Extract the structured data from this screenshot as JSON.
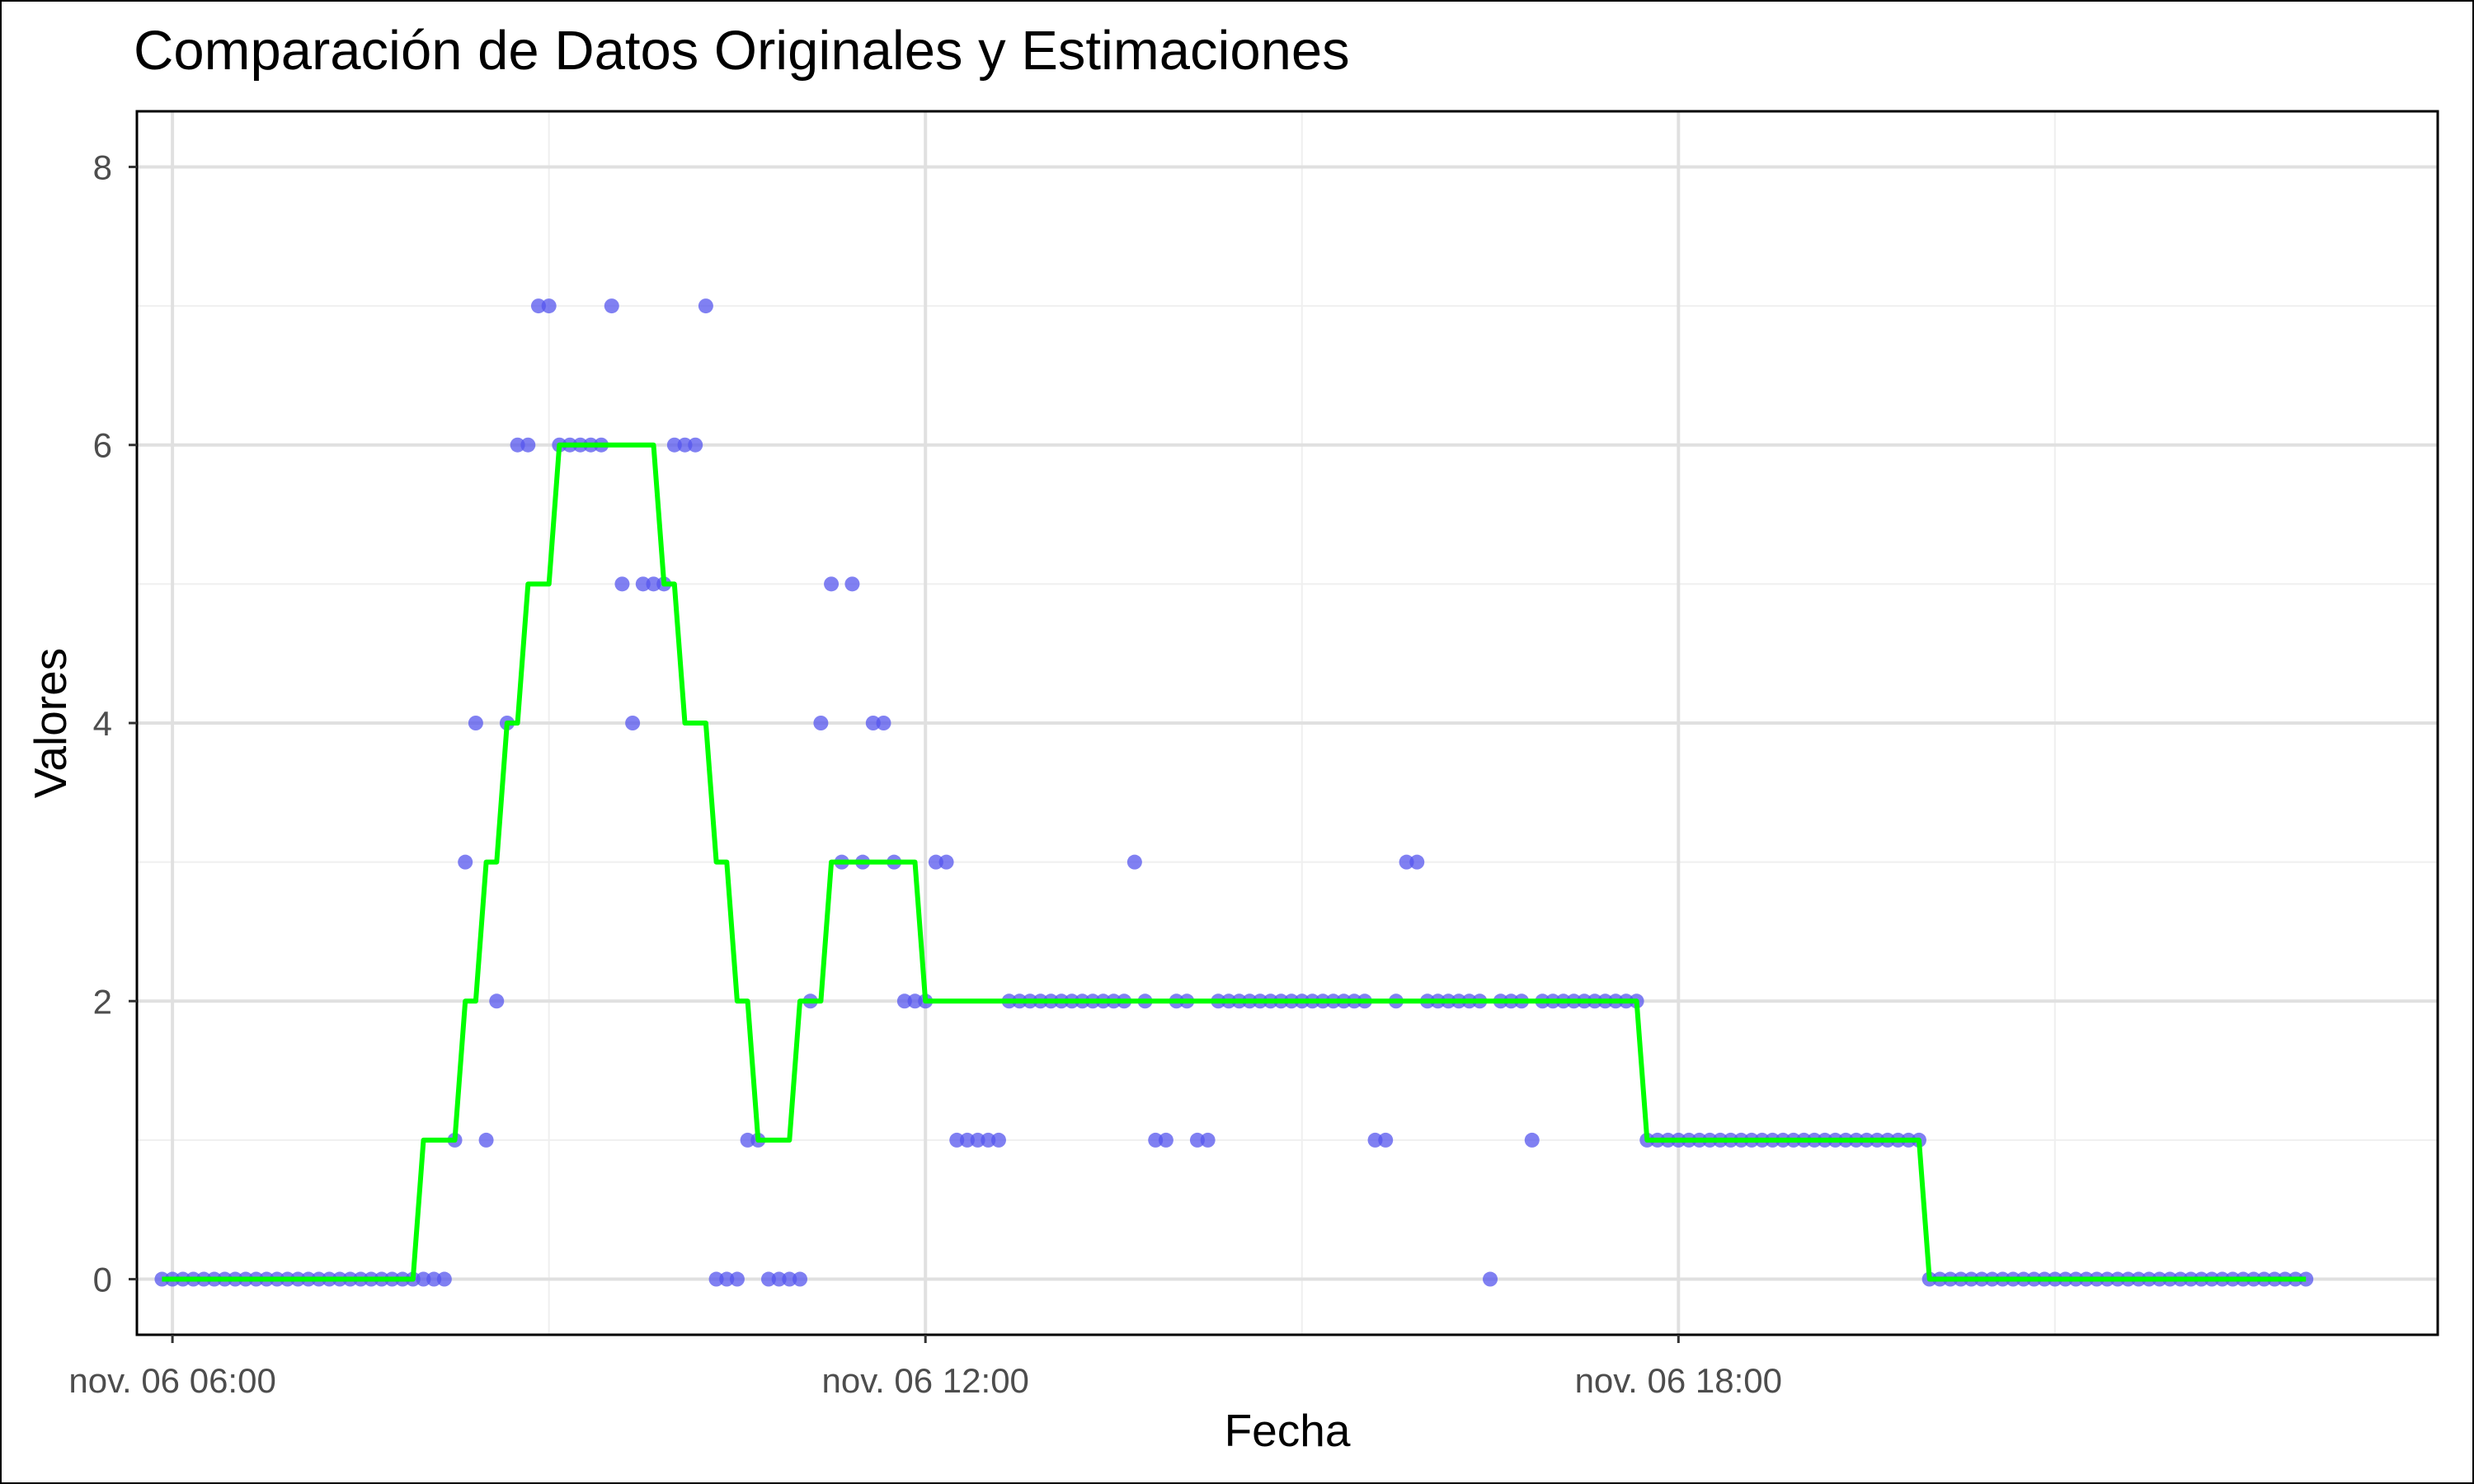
{
  "chart_data": {
    "type": "line",
    "title": "Comparación de Datos Originales y Estimaciones",
    "xlabel": "Fecha",
    "ylabel": "Valores",
    "xlim": [
      "2023-11-06 05:43",
      "2023-11-07 00:03"
    ],
    "ylim": [
      -0.4,
      8.4
    ],
    "y_ticks": [
      0,
      2,
      4,
      6,
      8
    ],
    "x_ticks": [
      {
        "value": "2023-11-06 06:00",
        "label": "nov. 06 06:00"
      },
      {
        "value": "2023-11-06 12:00",
        "label": "nov. 06 12:00"
      },
      {
        "value": "2023-11-06 18:00",
        "label": "nov. 06 18:00"
      }
    ],
    "grid": true,
    "legend": "none",
    "series": [
      {
        "kind": "points",
        "color": "#5555ee",
        "points": [
          [
            "2023-11-06 05:55",
            0
          ],
          [
            "2023-11-06 06:00",
            0
          ],
          [
            "2023-11-06 06:05",
            0
          ],
          [
            "2023-11-06 06:10",
            0
          ],
          [
            "2023-11-06 06:15",
            0
          ],
          [
            "2023-11-06 06:20",
            0
          ],
          [
            "2023-11-06 06:25",
            0
          ],
          [
            "2023-11-06 06:30",
            0
          ],
          [
            "2023-11-06 06:35",
            0
          ],
          [
            "2023-11-06 06:40",
            0
          ],
          [
            "2023-11-06 06:45",
            0
          ],
          [
            "2023-11-06 06:50",
            0
          ],
          [
            "2023-11-06 06:55",
            0
          ],
          [
            "2023-11-06 07:00",
            0
          ],
          [
            "2023-11-06 07:05",
            0
          ],
          [
            "2023-11-06 07:10",
            0
          ],
          [
            "2023-11-06 07:15",
            0
          ],
          [
            "2023-11-06 07:20",
            0
          ],
          [
            "2023-11-06 07:25",
            0
          ],
          [
            "2023-11-06 07:30",
            0
          ],
          [
            "2023-11-06 07:35",
            0
          ],
          [
            "2023-11-06 07:40",
            0
          ],
          [
            "2023-11-06 07:45",
            0
          ],
          [
            "2023-11-06 07:50",
            0
          ],
          [
            "2023-11-06 07:55",
            0
          ],
          [
            "2023-11-06 08:00",
            0
          ],
          [
            "2023-11-06 08:05",
            0
          ],
          [
            "2023-11-06 08:10",
            0
          ],
          [
            "2023-11-06 08:15",
            1
          ],
          [
            "2023-11-06 08:20",
            3
          ],
          [
            "2023-11-06 08:25",
            4
          ],
          [
            "2023-11-06 08:30",
            1
          ],
          [
            "2023-11-06 08:35",
            2
          ],
          [
            "2023-11-06 08:40",
            4
          ],
          [
            "2023-11-06 08:45",
            6
          ],
          [
            "2023-11-06 08:50",
            6
          ],
          [
            "2023-11-06 08:55",
            7
          ],
          [
            "2023-11-06 09:00",
            7
          ],
          [
            "2023-11-06 09:05",
            6
          ],
          [
            "2023-11-06 09:10",
            6
          ],
          [
            "2023-11-06 09:15",
            6
          ],
          [
            "2023-11-06 09:20",
            6
          ],
          [
            "2023-11-06 09:25",
            6
          ],
          [
            "2023-11-06 09:30",
            7
          ],
          [
            "2023-11-06 09:35",
            5
          ],
          [
            "2023-11-06 09:40",
            4
          ],
          [
            "2023-11-06 09:45",
            5
          ],
          [
            "2023-11-06 09:50",
            5
          ],
          [
            "2023-11-06 09:55",
            5
          ],
          [
            "2023-11-06 10:00",
            6
          ],
          [
            "2023-11-06 10:05",
            6
          ],
          [
            "2023-11-06 10:10",
            6
          ],
          [
            "2023-11-06 10:15",
            7
          ],
          [
            "2023-11-06 10:20",
            0
          ],
          [
            "2023-11-06 10:25",
            0
          ],
          [
            "2023-11-06 10:30",
            0
          ],
          [
            "2023-11-06 10:35",
            1
          ],
          [
            "2023-11-06 10:40",
            1
          ],
          [
            "2023-11-06 10:45",
            0
          ],
          [
            "2023-11-06 10:50",
            0
          ],
          [
            "2023-11-06 10:55",
            0
          ],
          [
            "2023-11-06 11:00",
            0
          ],
          [
            "2023-11-06 11:05",
            2
          ],
          [
            "2023-11-06 11:10",
            4
          ],
          [
            "2023-11-06 11:15",
            5
          ],
          [
            "2023-11-06 11:20",
            3
          ],
          [
            "2023-11-06 11:25",
            5
          ],
          [
            "2023-11-06 11:30",
            3
          ],
          [
            "2023-11-06 11:35",
            4
          ],
          [
            "2023-11-06 11:40",
            4
          ],
          [
            "2023-11-06 11:45",
            3
          ],
          [
            "2023-11-06 11:50",
            2
          ],
          [
            "2023-11-06 11:55",
            2
          ],
          [
            "2023-11-06 12:00",
            2
          ],
          [
            "2023-11-06 12:05",
            3
          ],
          [
            "2023-11-06 12:10",
            3
          ],
          [
            "2023-11-06 12:15",
            1
          ],
          [
            "2023-11-06 12:20",
            1
          ],
          [
            "2023-11-06 12:25",
            1
          ],
          [
            "2023-11-06 12:30",
            1
          ],
          [
            "2023-11-06 12:35",
            1
          ],
          [
            "2023-11-06 12:40",
            2
          ],
          [
            "2023-11-06 12:45",
            2
          ],
          [
            "2023-11-06 12:50",
            2
          ],
          [
            "2023-11-06 12:55",
            2
          ],
          [
            "2023-11-06 13:00",
            2
          ],
          [
            "2023-11-06 13:05",
            2
          ],
          [
            "2023-11-06 13:10",
            2
          ],
          [
            "2023-11-06 13:15",
            2
          ],
          [
            "2023-11-06 13:20",
            2
          ],
          [
            "2023-11-06 13:25",
            2
          ],
          [
            "2023-11-06 13:30",
            2
          ],
          [
            "2023-11-06 13:35",
            2
          ],
          [
            "2023-11-06 13:40",
            3
          ],
          [
            "2023-11-06 13:45",
            2
          ],
          [
            "2023-11-06 13:50",
            1
          ],
          [
            "2023-11-06 13:55",
            1
          ],
          [
            "2023-11-06 14:00",
            2
          ],
          [
            "2023-11-06 14:05",
            2
          ],
          [
            "2023-11-06 14:10",
            1
          ],
          [
            "2023-11-06 14:15",
            1
          ],
          [
            "2023-11-06 14:20",
            2
          ],
          [
            "2023-11-06 14:25",
            2
          ],
          [
            "2023-11-06 14:30",
            2
          ],
          [
            "2023-11-06 14:35",
            2
          ],
          [
            "2023-11-06 14:40",
            2
          ],
          [
            "2023-11-06 14:45",
            2
          ],
          [
            "2023-11-06 14:50",
            2
          ],
          [
            "2023-11-06 14:55",
            2
          ],
          [
            "2023-11-06 15:00",
            2
          ],
          [
            "2023-11-06 15:05",
            2
          ],
          [
            "2023-11-06 15:10",
            2
          ],
          [
            "2023-11-06 15:15",
            2
          ],
          [
            "2023-11-06 15:20",
            2
          ],
          [
            "2023-11-06 15:25",
            2
          ],
          [
            "2023-11-06 15:30",
            2
          ],
          [
            "2023-11-06 15:35",
            1
          ],
          [
            "2023-11-06 15:40",
            1
          ],
          [
            "2023-11-06 15:45",
            2
          ],
          [
            "2023-11-06 15:50",
            3
          ],
          [
            "2023-11-06 15:55",
            3
          ],
          [
            "2023-11-06 16:00",
            2
          ],
          [
            "2023-11-06 16:05",
            2
          ],
          [
            "2023-11-06 16:10",
            2
          ],
          [
            "2023-11-06 16:15",
            2
          ],
          [
            "2023-11-06 16:20",
            2
          ],
          [
            "2023-11-06 16:25",
            2
          ],
          [
            "2023-11-06 16:30",
            0
          ],
          [
            "2023-11-06 16:35",
            2
          ],
          [
            "2023-11-06 16:40",
            2
          ],
          [
            "2023-11-06 16:45",
            2
          ],
          [
            "2023-11-06 16:50",
            1
          ],
          [
            "2023-11-06 16:55",
            2
          ],
          [
            "2023-11-06 17:00",
            2
          ],
          [
            "2023-11-06 17:05",
            2
          ],
          [
            "2023-11-06 17:10",
            2
          ],
          [
            "2023-11-06 17:15",
            2
          ],
          [
            "2023-11-06 17:20",
            2
          ],
          [
            "2023-11-06 17:25",
            2
          ],
          [
            "2023-11-06 17:30",
            2
          ],
          [
            "2023-11-06 17:35",
            2
          ],
          [
            "2023-11-06 17:40",
            2
          ],
          [
            "2023-11-06 17:45",
            1
          ],
          [
            "2023-11-06 17:50",
            1
          ],
          [
            "2023-11-06 17:55",
            1
          ],
          [
            "2023-11-06 18:00",
            1
          ],
          [
            "2023-11-06 18:05",
            1
          ],
          [
            "2023-11-06 18:10",
            1
          ],
          [
            "2023-11-06 18:15",
            1
          ],
          [
            "2023-11-06 18:20",
            1
          ],
          [
            "2023-11-06 18:25",
            1
          ],
          [
            "2023-11-06 18:30",
            1
          ],
          [
            "2023-11-06 18:35",
            1
          ],
          [
            "2023-11-06 18:40",
            1
          ],
          [
            "2023-11-06 18:45",
            1
          ],
          [
            "2023-11-06 18:50",
            1
          ],
          [
            "2023-11-06 18:55",
            1
          ],
          [
            "2023-11-06 19:00",
            1
          ],
          [
            "2023-11-06 19:05",
            1
          ],
          [
            "2023-11-06 19:10",
            1
          ],
          [
            "2023-11-06 19:15",
            1
          ],
          [
            "2023-11-06 19:20",
            1
          ],
          [
            "2023-11-06 19:25",
            1
          ],
          [
            "2023-11-06 19:30",
            1
          ],
          [
            "2023-11-06 19:35",
            1
          ],
          [
            "2023-11-06 19:40",
            1
          ],
          [
            "2023-11-06 19:45",
            1
          ],
          [
            "2023-11-06 19:50",
            1
          ],
          [
            "2023-11-06 19:55",
            1
          ],
          [
            "2023-11-06 20:00",
            0
          ],
          [
            "2023-11-06 20:05",
            0
          ],
          [
            "2023-11-06 20:10",
            0
          ],
          [
            "2023-11-06 20:15",
            0
          ],
          [
            "2023-11-06 20:20",
            0
          ],
          [
            "2023-11-06 20:25",
            0
          ],
          [
            "2023-11-06 20:30",
            0
          ],
          [
            "2023-11-06 20:35",
            0
          ],
          [
            "2023-11-06 20:40",
            0
          ],
          [
            "2023-11-06 20:45",
            0
          ],
          [
            "2023-11-06 20:50",
            0
          ],
          [
            "2023-11-06 20:55",
            0
          ],
          [
            "2023-11-06 21:00",
            0
          ],
          [
            "2023-11-06 21:05",
            0
          ],
          [
            "2023-11-06 21:10",
            0
          ],
          [
            "2023-11-06 21:15",
            0
          ],
          [
            "2023-11-06 21:20",
            0
          ],
          [
            "2023-11-06 21:25",
            0
          ],
          [
            "2023-11-06 21:30",
            0
          ],
          [
            "2023-11-06 21:35",
            0
          ],
          [
            "2023-11-06 21:40",
            0
          ],
          [
            "2023-11-06 21:45",
            0
          ],
          [
            "2023-11-06 21:50",
            0
          ],
          [
            "2023-11-06 21:55",
            0
          ],
          [
            "2023-11-06 22:00",
            0
          ],
          [
            "2023-11-06 22:05",
            0
          ],
          [
            "2023-11-06 22:10",
            0
          ],
          [
            "2023-11-06 22:15",
            0
          ],
          [
            "2023-11-06 22:20",
            0
          ],
          [
            "2023-11-06 22:25",
            0
          ],
          [
            "2023-11-06 22:30",
            0
          ],
          [
            "2023-11-06 22:35",
            0
          ],
          [
            "2023-11-06 22:40",
            0
          ],
          [
            "2023-11-06 22:45",
            0
          ],
          [
            "2023-11-06 22:50",
            0
          ],
          [
            "2023-11-06 22:55",
            0
          ],
          [
            "2023-11-06 23:00",
            0
          ]
        ]
      },
      {
        "kind": "line",
        "color": "#00ff00",
        "points": [
          [
            "2023-11-06 05:55",
            0
          ],
          [
            "2023-11-06 07:55",
            0
          ],
          [
            "2023-11-06 08:00",
            1
          ],
          [
            "2023-11-06 08:15",
            1
          ],
          [
            "2023-11-06 08:20",
            2
          ],
          [
            "2023-11-06 08:25",
            2
          ],
          [
            "2023-11-06 08:30",
            3
          ],
          [
            "2023-11-06 08:35",
            3
          ],
          [
            "2023-11-06 08:40",
            4
          ],
          [
            "2023-11-06 08:45",
            4
          ],
          [
            "2023-11-06 08:50",
            5
          ],
          [
            "2023-11-06 09:00",
            5
          ],
          [
            "2023-11-06 09:05",
            6
          ],
          [
            "2023-11-06 09:50",
            6
          ],
          [
            "2023-11-06 09:55",
            5
          ],
          [
            "2023-11-06 10:00",
            5
          ],
          [
            "2023-11-06 10:05",
            4
          ],
          [
            "2023-11-06 10:15",
            4
          ],
          [
            "2023-11-06 10:20",
            3
          ],
          [
            "2023-11-06 10:25",
            3
          ],
          [
            "2023-11-06 10:30",
            2
          ],
          [
            "2023-11-06 10:35",
            2
          ],
          [
            "2023-11-06 10:40",
            1
          ],
          [
            "2023-11-06 10:55",
            1
          ],
          [
            "2023-11-06 11:00",
            2
          ],
          [
            "2023-11-06 11:10",
            2
          ],
          [
            "2023-11-06 11:15",
            3
          ],
          [
            "2023-11-06 11:55",
            3
          ],
          [
            "2023-11-06 12:00",
            2
          ],
          [
            "2023-11-06 17:40",
            2
          ],
          [
            "2023-11-06 17:45",
            1
          ],
          [
            "2023-11-06 19:55",
            1
          ],
          [
            "2023-11-06 20:00",
            0
          ],
          [
            "2023-11-06 23:00",
            0
          ]
        ]
      }
    ]
  }
}
